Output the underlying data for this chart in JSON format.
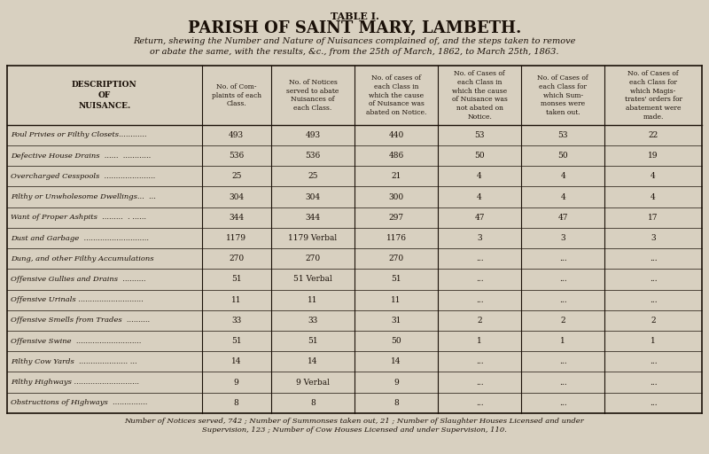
{
  "title1": "TABLE I.",
  "title2": "PARISH OF SAINT MARY, LAMBETH.",
  "subtitle": "Return, shewing the Number and Nature of Nuisances complained of, and the steps taken to remove\nor abate the same, with the results, &c., from the 25th of March, 1862, to March 25th, 1863.",
  "col_headers": [
    "DESCRIPTION\nOF\nNUISANCE.",
    "No. of Com-\nplaints of each\nClass.",
    "No. of Notices\nserved to abate\nNuisances of\neach Class.",
    "No. of cases of\neach Class in\nwhich the cause\nof Nuisance was\nabated on Notice.",
    "No. of Cases of\neach Class in\nwhich the cause\nof Nuisance was\nnot abated on\nNotice.",
    "No. of Cases of\neach Class for\nwhich Sum-\nmonses were\ntaken out.",
    "No. of Cases of\neach Class for\nwhich Magis-\ntrates' orders for\nabatement were\nmade."
  ],
  "rows": [
    [
      "Foul Privies or Filthy Closets............",
      "493",
      "493",
      "440",
      "53",
      "53",
      "22"
    ],
    [
      "Defective House Drains  ......  ............",
      "536",
      "536",
      "486",
      "50",
      "50",
      "19"
    ],
    [
      "Overcharged Cesspools  ......................",
      "25",
      "25",
      "21",
      "4",
      "4",
      "4"
    ],
    [
      "Filthy or Unwholesome Dwellings...  ...",
      "304",
      "304",
      "300",
      "4",
      "4",
      "4"
    ],
    [
      "Want of Proper Ashpits  .........  . ......",
      "344",
      "344",
      "297",
      "47",
      "47",
      "17"
    ],
    [
      "Dust and Garbage  ............................",
      "1179",
      "1179 Verbal",
      "1176",
      "3",
      "3",
      "3"
    ],
    [
      "Dung, and other Filthy Accumulations",
      "270",
      "270",
      "270",
      "...",
      "...",
      "..."
    ],
    [
      "Offensive Gullies and Drains  ..........",
      "51",
      "51 Verbal",
      "51",
      "...",
      "...",
      "..."
    ],
    [
      "Offensive Urinals ............................",
      "11",
      "11",
      "11",
      "...",
      "...",
      "..."
    ],
    [
      "Offensive Smells from Trades  ..........",
      "33",
      "33",
      "31",
      "2",
      "2",
      "2"
    ],
    [
      "Offensive Swine  ............................",
      "51",
      "51",
      "50",
      "1",
      "1",
      "1"
    ],
    [
      "Filthy Cow Yards  ..................... ...",
      "14",
      "14",
      "14",
      "...",
      "...",
      "..."
    ],
    [
      "Filthy Highways ............................",
      "9",
      "9 Verbal",
      "9",
      "...",
      "...",
      "..."
    ],
    [
      "Obstructions of Highways  ...............",
      "8",
      "8",
      "8",
      "...",
      "...",
      "..."
    ]
  ],
  "footer": "Number of Notices served, 742 ; Number of Summonses taken out, 21 ; Number of Slaughter Houses Licensed and under\nSupervision, 123 ; Number of Cow Houses Licensed and under Supervision, 110.",
  "bg_color": "#d8d0c0",
  "text_color": "#1a1008",
  "line_color": "#1a1008"
}
